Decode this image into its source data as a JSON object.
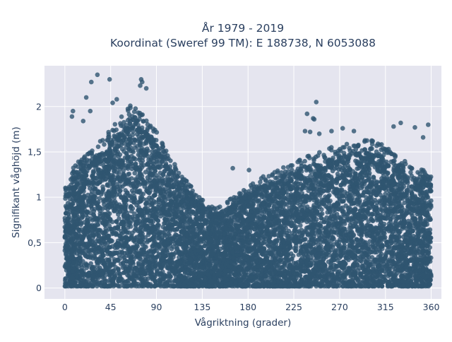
{
  "chart_data": {
    "type": "scatter",
    "title_line1": "År 1979 - 2019",
    "title_line2": "Koordinat (Sweref 99 TM): E 188738, N 6053088",
    "xlabel": "Vågriktning (grader)",
    "ylabel": "Signifikant våghöjd (m)",
    "xlim": [
      -20,
      370
    ],
    "ylim": [
      -0.12,
      2.45
    ],
    "x_ticks": [
      {
        "value": 0,
        "label": "0"
      },
      {
        "value": 45,
        "label": "45"
      },
      {
        "value": 90,
        "label": "90"
      },
      {
        "value": 135,
        "label": "135"
      },
      {
        "value": 180,
        "label": "180"
      },
      {
        "value": 225,
        "label": "225"
      },
      {
        "value": 270,
        "label": "270"
      },
      {
        "value": 315,
        "label": "315"
      },
      {
        "value": 360,
        "label": "360"
      }
    ],
    "y_ticks": [
      {
        "value": 0,
        "label": "0"
      },
      {
        "value": 0.5,
        "label": "0,5"
      },
      {
        "value": 1,
        "label": "1"
      },
      {
        "value": 1.5,
        "label": "1,5"
      },
      {
        "value": 2,
        "label": "2"
      }
    ],
    "grid": true,
    "colors": {
      "background": "#e5e5ef",
      "grid": "#ffffff",
      "marker": "#2f5570"
    },
    "upper_envelope": {
      "x": [
        0,
        5,
        10,
        15,
        20,
        25,
        30,
        35,
        40,
        45,
        50,
        55,
        60,
        65,
        70,
        75,
        80,
        85,
        90,
        95,
        100,
        105,
        110,
        115,
        120,
        125,
        130,
        135,
        140,
        145,
        150,
        155,
        160,
        165,
        170,
        175,
        180,
        185,
        190,
        195,
        200,
        205,
        210,
        215,
        220,
        225,
        230,
        235,
        240,
        245,
        250,
        255,
        260,
        265,
        270,
        275,
        280,
        285,
        290,
        295,
        300,
        305,
        310,
        315,
        320,
        325,
        330,
        335,
        340,
        345,
        350,
        355,
        360
      ],
      "y": [
        1.0,
        1.15,
        1.25,
        1.3,
        1.35,
        1.4,
        1.45,
        1.5,
        1.55,
        1.62,
        1.68,
        1.74,
        1.8,
        1.85,
        1.9,
        1.78,
        1.72,
        1.68,
        1.58,
        1.48,
        1.38,
        1.3,
        1.22,
        1.15,
        1.08,
        1.02,
        0.96,
        0.9,
        0.86,
        0.83,
        0.82,
        0.84,
        0.88,
        0.92,
        0.96,
        1.0,
        1.03,
        1.06,
        1.1,
        1.13,
        1.15,
        1.18,
        1.2,
        1.22,
        1.26,
        1.28,
        1.3,
        1.32,
        1.34,
        1.36,
        1.38,
        1.4,
        1.42,
        1.44,
        1.45,
        1.46,
        1.47,
        1.48,
        1.49,
        1.5,
        1.5,
        1.48,
        1.46,
        1.43,
        1.4,
        1.36,
        1.32,
        1.28,
        1.25,
        1.22,
        1.2,
        1.18,
        1.15
      ]
    },
    "outliers": [
      {
        "x": 32,
        "y": 2.35
      },
      {
        "x": 44,
        "y": 2.3
      },
      {
        "x": 26,
        "y": 2.27
      },
      {
        "x": 75,
        "y": 2.3
      },
      {
        "x": 76,
        "y": 2.27
      },
      {
        "x": 74,
        "y": 2.23
      },
      {
        "x": 80,
        "y": 2.2
      },
      {
        "x": 21,
        "y": 2.1
      },
      {
        "x": 51,
        "y": 2.08
      },
      {
        "x": 47,
        "y": 2.04
      },
      {
        "x": 8,
        "y": 1.95
      },
      {
        "x": 25,
        "y": 1.95
      },
      {
        "x": 7,
        "y": 1.89
      },
      {
        "x": 18,
        "y": 1.84
      },
      {
        "x": 247,
        "y": 2.05
      },
      {
        "x": 238,
        "y": 1.92
      },
      {
        "x": 244,
        "y": 1.87
      },
      {
        "x": 245,
        "y": 1.86
      },
      {
        "x": 236,
        "y": 1.73
      },
      {
        "x": 241,
        "y": 1.72
      },
      {
        "x": 250,
        "y": 1.7
      },
      {
        "x": 262,
        "y": 1.73
      },
      {
        "x": 273,
        "y": 1.76
      },
      {
        "x": 284,
        "y": 1.73
      },
      {
        "x": 330,
        "y": 1.82
      },
      {
        "x": 323,
        "y": 1.78
      },
      {
        "x": 344,
        "y": 1.77
      },
      {
        "x": 357,
        "y": 1.8
      },
      {
        "x": 352,
        "y": 1.66
      },
      {
        "x": 181,
        "y": 1.3
      },
      {
        "x": 165,
        "y": 1.32
      }
    ]
  }
}
